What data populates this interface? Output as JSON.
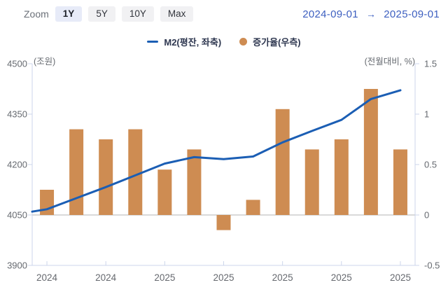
{
  "toolbar": {
    "zoom_label": "Zoom",
    "buttons": [
      {
        "label": "1Y",
        "active": true
      },
      {
        "label": "5Y",
        "active": false
      },
      {
        "label": "10Y",
        "active": false
      },
      {
        "label": "Max",
        "active": false
      }
    ],
    "date_from": "2024-09-01",
    "date_arrow": "→",
    "date_to": "2025-09-01"
  },
  "legend": [
    {
      "label": "M2(평잔, 좌축)",
      "swatch": "line",
      "color": "#1b5eb4"
    },
    {
      "label": "증가율(우측)",
      "swatch": "circle",
      "color": "#ce8c52"
    }
  ],
  "colors": {
    "line": "#1b5eb4",
    "bar": "#ce8c52",
    "axis_line": "#ccd6eb",
    "zero_line": "#d9d9d9",
    "tick_text": "#666a70",
    "date_text": "#3d5fc0"
  },
  "chart_data": {
    "type": "bar",
    "subtype": "dual-axis column + line combo",
    "categories": [
      "2024-09",
      "2024-10",
      "2024-11",
      "2024-12",
      "2025-01",
      "2025-02",
      "2025-03",
      "2025-04",
      "2025-05",
      "2025-06",
      "2025-07",
      "2025-08",
      "2025-09"
    ],
    "x_tick_labels": [
      "2024",
      "2024",
      "2025",
      "2025",
      "2025",
      "2025",
      "2025"
    ],
    "x_tick_category_indexes": [
      0,
      2,
      4,
      6,
      8,
      10,
      12
    ],
    "series": [
      {
        "name": "M2(평잔, 좌축)",
        "type": "line",
        "axis": "left",
        "color": "#1b5eb4",
        "values": [
          4067,
          4100,
          4133,
          4168,
          4203,
          4222,
          4216,
          4224,
          4266,
          4300,
          4333,
          4395,
          4421
        ],
        "starts_at_axis": true,
        "axis_start_value": 4060
      },
      {
        "name": "증가율(우측)",
        "type": "bar",
        "axis": "right",
        "color": "#ce8c52",
        "values": [
          0.25,
          0.85,
          0.75,
          0.85,
          0.45,
          0.65,
          -0.15,
          0.15,
          1.05,
          0.65,
          0.75,
          1.25,
          0.65
        ]
      }
    ],
    "left_axis": {
      "title": "(조원)",
      "ticks": [
        4500,
        4350,
        4200,
        4050,
        3900
      ],
      "min": 3900,
      "max": 4500
    },
    "right_axis": {
      "title": "(전월대비, %)",
      "ticks": [
        "1.5",
        "1",
        "0.5",
        "0",
        "-0.5"
      ],
      "min": -0.5,
      "max": 1.5
    },
    "grid": "none (zero line only)",
    "legend_position": "top-center"
  }
}
